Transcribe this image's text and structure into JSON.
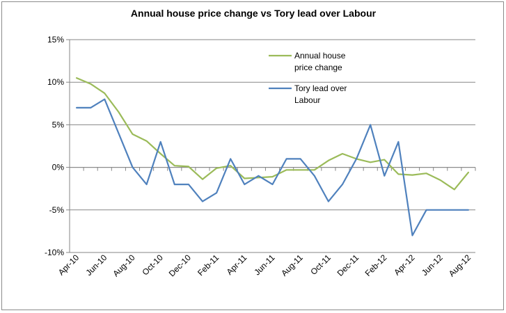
{
  "chart_data": {
    "type": "line",
    "title": "Annual house price change vs Tory lead over Labour",
    "xlabel": "",
    "ylabel": "",
    "ylim": [
      -10,
      15
    ],
    "y_ticks": [
      "15%",
      "10%",
      "5%",
      "0%",
      "-5%",
      "-10%"
    ],
    "x_tick_labels": [
      "Apr-10",
      "Jun-10",
      "Aug-10",
      "Oct-10",
      "Dec-10",
      "Feb-11",
      "Apr-11",
      "Jun-11",
      "Aug-11",
      "Oct-11",
      "Dec-11",
      "Feb-12",
      "Apr-12",
      "Jun-12",
      "Aug-12"
    ],
    "x": [
      "Apr-10",
      "May-10",
      "Jun-10",
      "Jul-10",
      "Aug-10",
      "Sep-10",
      "Oct-10",
      "Nov-10",
      "Dec-10",
      "Jan-11",
      "Feb-11",
      "Mar-11",
      "Apr-11",
      "May-11",
      "Jun-11",
      "Jul-11",
      "Aug-11",
      "Sep-11",
      "Oct-11",
      "Nov-11",
      "Dec-11",
      "Jan-12",
      "Feb-12",
      "Mar-12",
      "Apr-12",
      "May-12",
      "Jun-12",
      "Jul-12",
      "Aug-12"
    ],
    "grid": true,
    "legend_position": "top-right",
    "series": [
      {
        "name": "Annual house price change",
        "color": "#9bbb59",
        "values": [
          10.5,
          9.8,
          8.7,
          6.5,
          3.9,
          3.1,
          1.6,
          0.2,
          0.1,
          -1.4,
          -0.1,
          0.2,
          -1.3,
          -1.2,
          -1.1,
          -0.3,
          -0.3,
          -0.3,
          0.8,
          1.6,
          1.0,
          0.6,
          0.9,
          -0.8,
          -0.9,
          -0.7,
          -1.5,
          -2.6,
          -0.6
        ]
      },
      {
        "name": "Tory lead over Labour",
        "color": "#4f81bd",
        "values": [
          7,
          7,
          8,
          4,
          0,
          -2,
          3,
          -2,
          -2,
          -4,
          -3,
          1,
          -2,
          -1,
          -2,
          1,
          1,
          -1,
          -4,
          -2,
          1,
          5,
          -1,
          3,
          -8,
          -5,
          -5,
          -5,
          -5
        ]
      }
    ]
  }
}
